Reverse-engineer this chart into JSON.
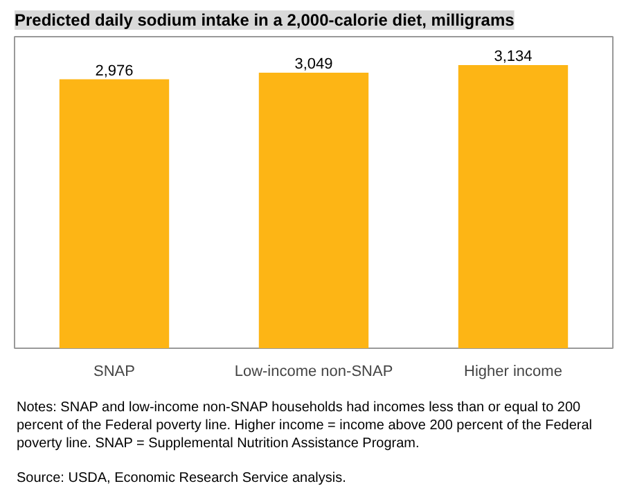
{
  "chart_data": {
    "type": "bar",
    "title": "Predicted daily sodium intake in a 2,000-calorie diet, milligrams",
    "categories": [
      "SNAP",
      "Low-income non-SNAP",
      "Higher income"
    ],
    "values": [
      2976,
      3049,
      3134
    ],
    "color": "#fdb515",
    "value_labels": [
      "2,976",
      "3,049",
      "3,134"
    ],
    "grid": false,
    "annotations": [
      "Notes: SNAP and low-income non-SNAP households had incomes less than or equal to 200 percent of the Federal poverty line. Higher income = income above 200 percent of the Federal poverty line. SNAP = Supplemental Nutrition Assistance Program.",
      "Source: USDA, Economic Research Service analysis."
    ]
  }
}
